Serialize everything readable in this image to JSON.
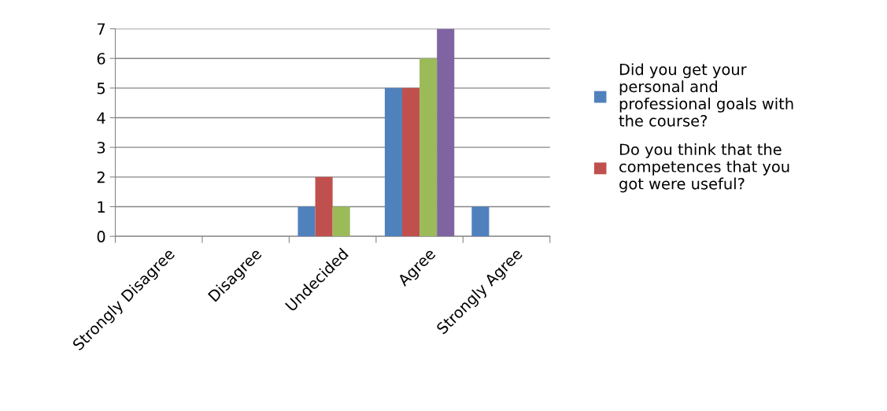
{
  "chart_data": {
    "type": "bar",
    "categories": [
      "Strongly Disagree",
      "Disagree",
      "Undecided",
      "Agree",
      "Strongly Agree"
    ],
    "series": [
      {
        "name": "Did you get your\npersonal and\nprofessional goals with\nthe course?",
        "color": "#4f81bd",
        "values": [
          0,
          0,
          1,
          5,
          1
        ]
      },
      {
        "name": "Do you think that the\ncompetences that you\ngot were useful?",
        "color": "#c0504d",
        "values": [
          0,
          0,
          2,
          5,
          0
        ]
      },
      {
        "color": "#9bbb59",
        "values": [
          0,
          0,
          1,
          6,
          0
        ]
      },
      {
        "color": "#8064a2",
        "values": [
          0,
          0,
          0,
          7,
          0
        ]
      }
    ],
    "ylim": [
      0,
      7
    ],
    "yticks": [
      0,
      1,
      2,
      3,
      4,
      5,
      6,
      7
    ],
    "grid": "y",
    "legend": "right"
  }
}
